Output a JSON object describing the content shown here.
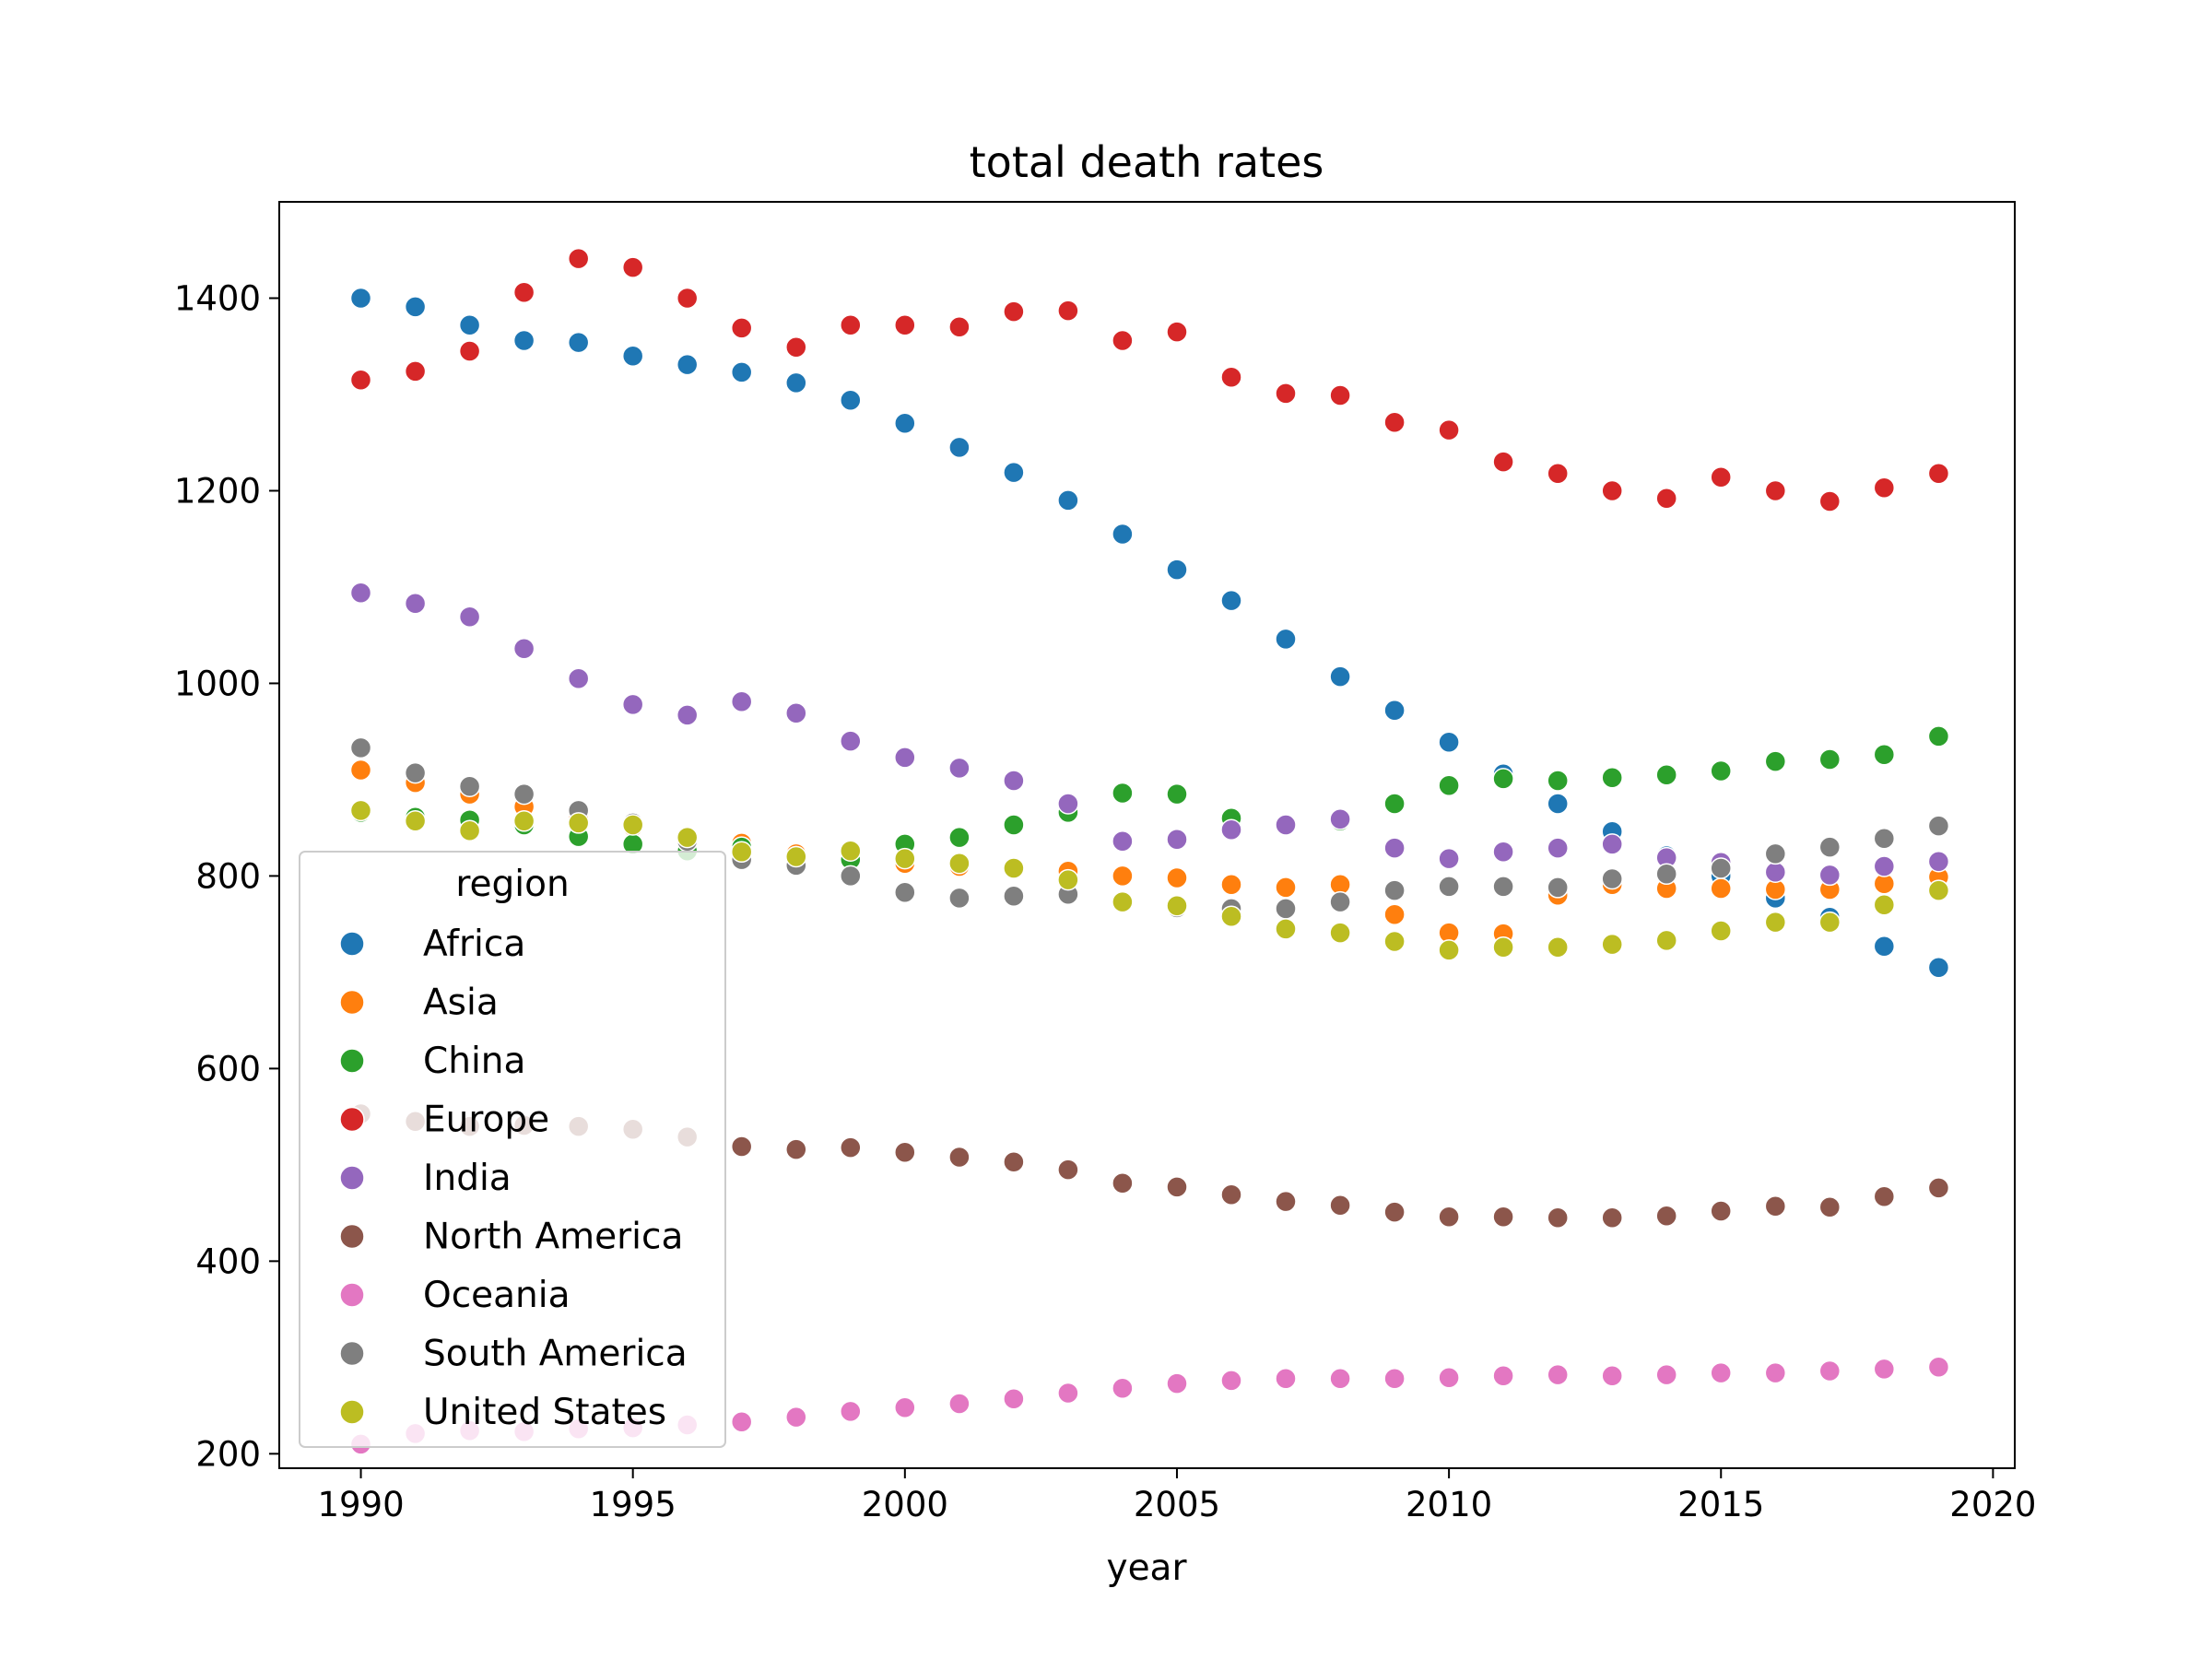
{
  "chart_data": {
    "type": "scatter",
    "title": "total death rates",
    "xlabel": "year",
    "ylabel": "",
    "xlim": [
      1988.5,
      2020.4
    ],
    "ylim": [
      185,
      1500
    ],
    "x_ticks": [
      "1990",
      "1995",
      "2000",
      "2005",
      "2010",
      "2015",
      "2020"
    ],
    "y_ticks": [
      "200",
      "400",
      "600",
      "800",
      "1000",
      "1200",
      "1400"
    ],
    "grid": false,
    "legend": {
      "title": "region",
      "position": "lower-left"
    },
    "x": [
      1990,
      1991,
      1992,
      1993,
      1994,
      1995,
      1996,
      1997,
      1998,
      1999,
      2000,
      2001,
      2002,
      2003,
      2004,
      2005,
      2006,
      2007,
      2008,
      2009,
      2010,
      2011,
      2012,
      2013,
      2014,
      2015,
      2016,
      2017,
      2018,
      2019
    ],
    "series": [
      {
        "name": "Africa",
        "color": "#1f77b4",
        "values": [
          1400,
          1391,
          1372,
          1356,
          1354,
          1340,
          1331,
          1323,
          1312,
          1294,
          1270,
          1245,
          1219,
          1190,
          1155,
          1118,
          1086,
          1046,
          1007,
          972,
          939,
          906,
          875,
          846,
          821,
          800,
          777,
          757,
          727,
          705
        ]
      },
      {
        "name": "Asia",
        "color": "#ff7f0e",
        "values": [
          910,
          897,
          885,
          872,
          860,
          851,
          840,
          834,
          823,
          818,
          813,
          810,
          808,
          805,
          800,
          798,
          791,
          788,
          791,
          760,
          741,
          740,
          780,
          791,
          787,
          787,
          786,
          786,
          792,
          799
        ]
      },
      {
        "name": "China",
        "color": "#2ca02c",
        "values": [
          866,
          861,
          858,
          853,
          841,
          833,
          826,
          830,
          820,
          817,
          833,
          840,
          853,
          866,
          886,
          885,
          860,
          852,
          857,
          875,
          894,
          901,
          899,
          902,
          905,
          909,
          919,
          921,
          926,
          945
        ]
      },
      {
        "name": "Europe",
        "color": "#d62728",
        "values": [
          1315,
          1324,
          1345,
          1406,
          1441,
          1432,
          1400,
          1369,
          1349,
          1372,
          1372,
          1370,
          1386,
          1387,
          1356,
          1365,
          1318,
          1301,
          1299,
          1271,
          1263,
          1230,
          1218,
          1200,
          1192,
          1214,
          1200,
          1189,
          1203,
          1218
        ]
      },
      {
        "name": "India",
        "color": "#9467bd",
        "values": [
          1094,
          1083,
          1069,
          1036,
          1005,
          978,
          967,
          981,
          969,
          940,
          923,
          912,
          899,
          875,
          836,
          838,
          848,
          853,
          859,
          829,
          818,
          825,
          829,
          833,
          819,
          814,
          804,
          801,
          810,
          815
        ]
      },
      {
        "name": "North America",
        "color": "#8c564b",
        "values": [
          553,
          545,
          540,
          541,
          540,
          537,
          529,
          519,
          516,
          518,
          513,
          508,
          503,
          495,
          481,
          477,
          469,
          462,
          458,
          451,
          446,
          446,
          445,
          445,
          447,
          452,
          457,
          456,
          467,
          476
        ]
      },
      {
        "name": "Oceania",
        "color": "#e377c2",
        "values": [
          210,
          221,
          224,
          223,
          226,
          227,
          230,
          233,
          238,
          244,
          248,
          252,
          257,
          263,
          268,
          273,
          276,
          278,
          278,
          278,
          279,
          281,
          282,
          281,
          282,
          284,
          284,
          286,
          288,
          290
        ]
      },
      {
        "name": "South America",
        "color": "#7f7f7f",
        "values": [
          933,
          907,
          893,
          885,
          868,
          855,
          836,
          817,
          811,
          800,
          783,
          777,
          779,
          781,
          773,
          767,
          766,
          766,
          773,
          785,
          789,
          789,
          788,
          797,
          802,
          808,
          823,
          830,
          839,
          852
        ]
      },
      {
        "name": "United States",
        "color": "#bcbd22",
        "values": [
          868,
          857,
          847,
          857,
          855,
          853,
          840,
          825,
          820,
          826,
          818,
          813,
          808,
          796,
          773,
          769,
          758,
          745,
          741,
          732,
          723,
          726,
          726,
          729,
          733,
          743,
          752,
          752,
          770,
          785
        ]
      }
    ]
  }
}
